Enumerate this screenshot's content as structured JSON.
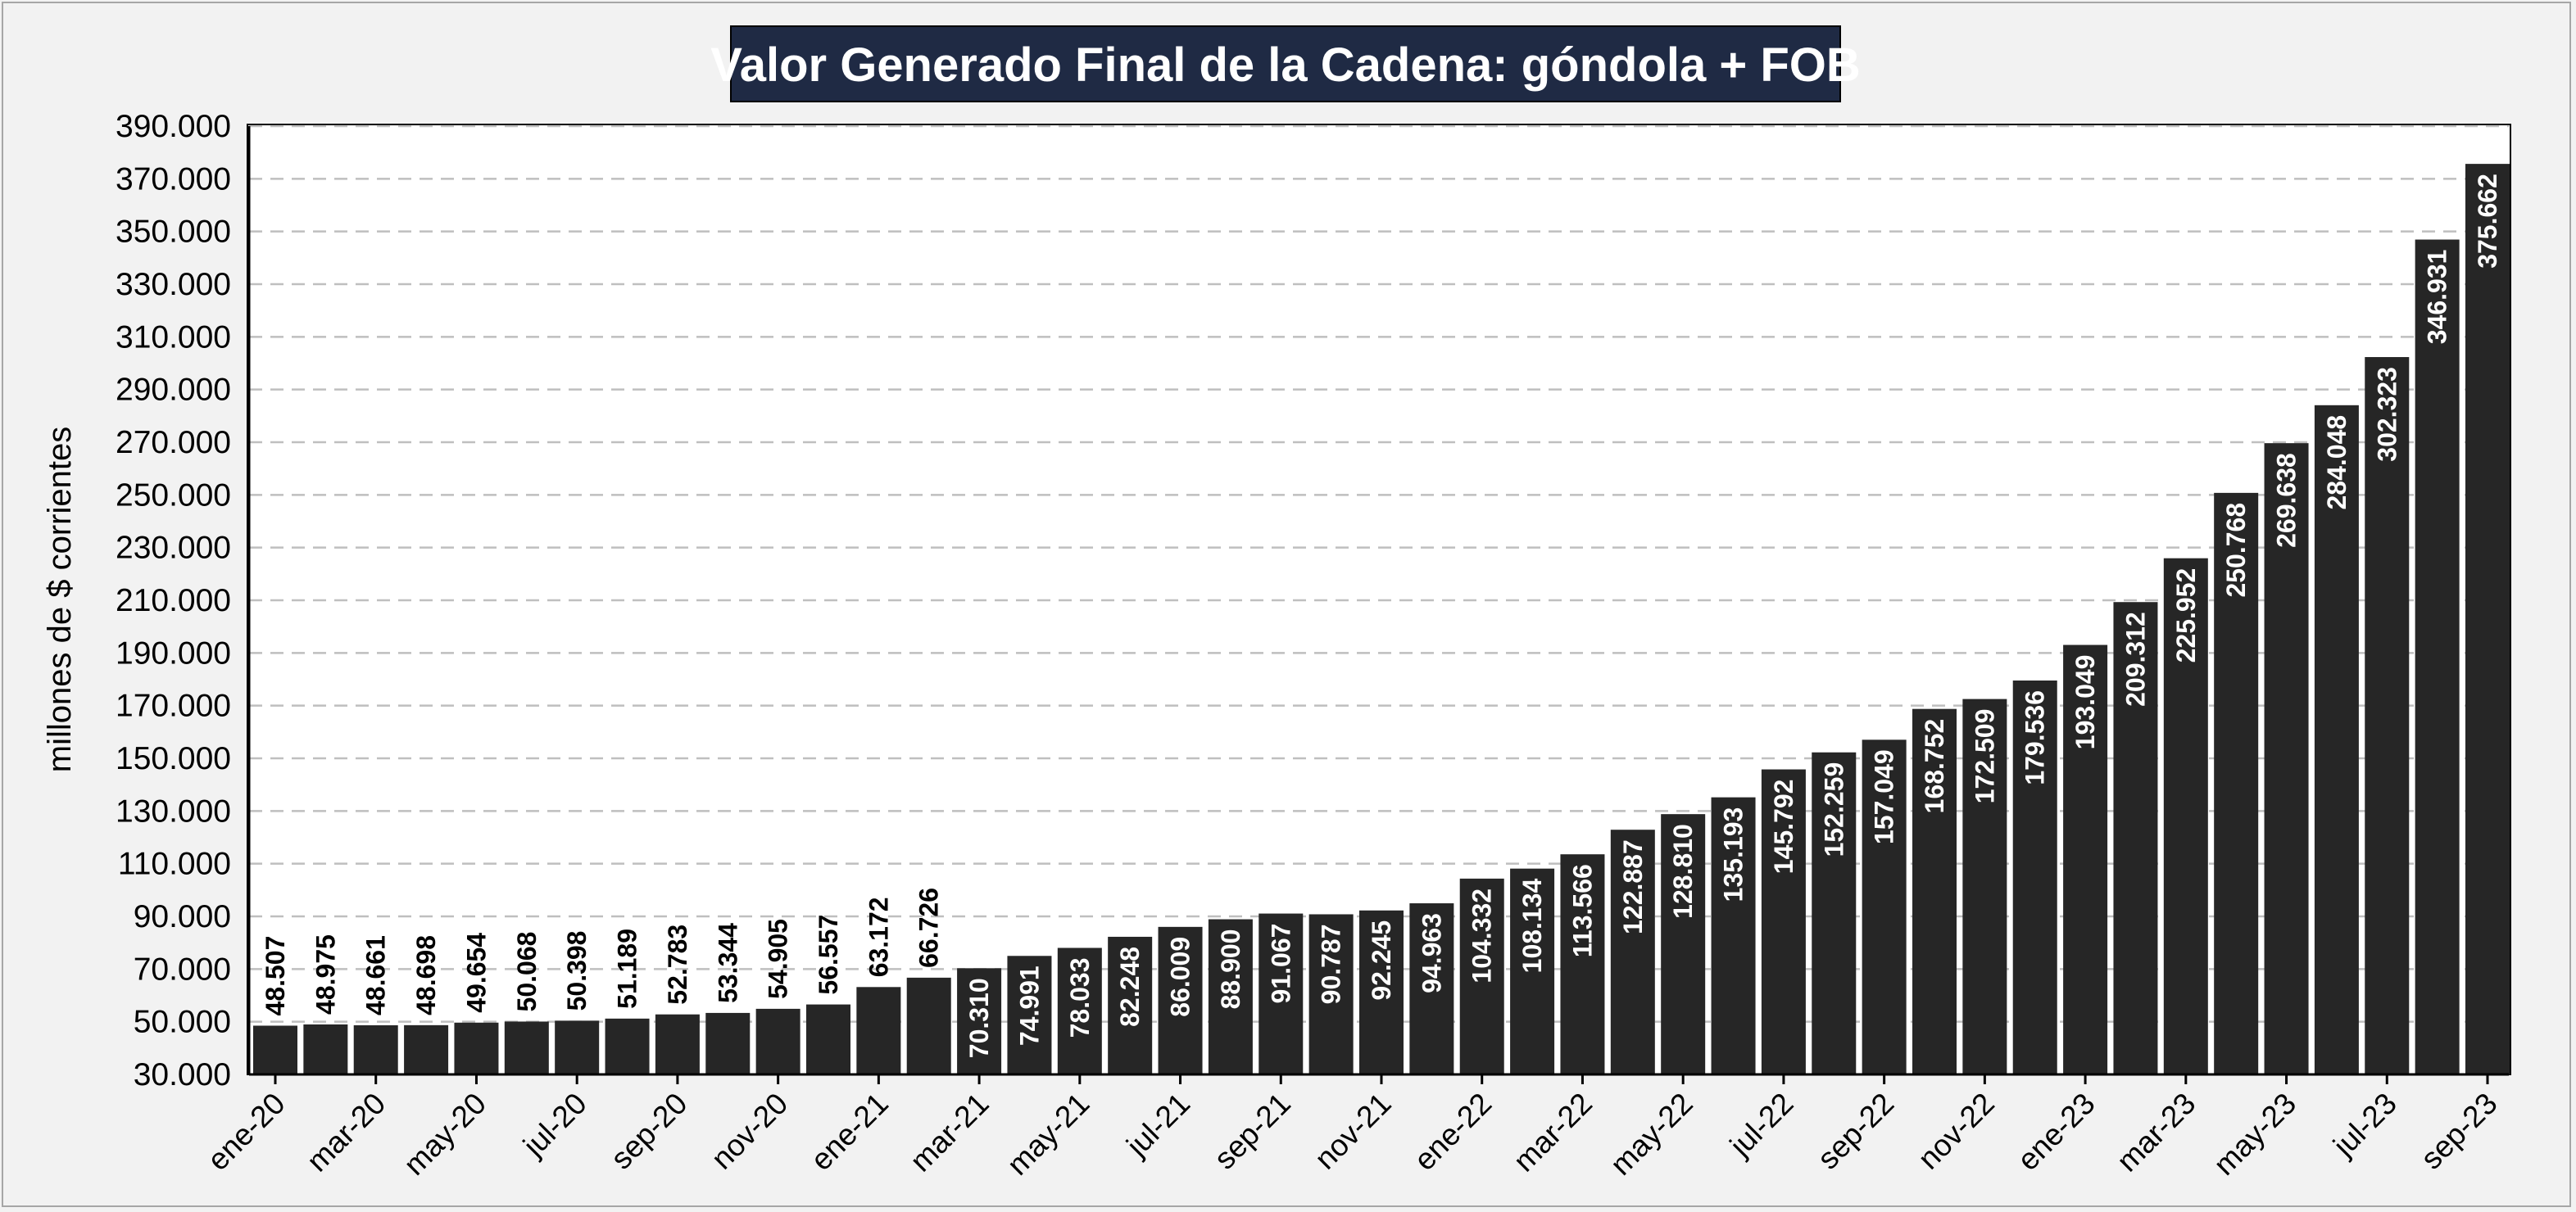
{
  "chart_data": {
    "type": "bar",
    "title": "Valor Generado Final de la Cadena: góndola + FOB",
    "xlabel": "",
    "ylabel": "millones de $ corrientes",
    "ylim": [
      30000,
      390000
    ],
    "yticks": [
      30000,
      50000,
      70000,
      90000,
      110000,
      130000,
      150000,
      170000,
      190000,
      210000,
      230000,
      250000,
      270000,
      290000,
      310000,
      330000,
      350000,
      370000,
      390000
    ],
    "ytick_labels": [
      "30.000",
      "50.000",
      "70.000",
      "90.000",
      "110.000",
      "130.000",
      "150.000",
      "170.000",
      "190.000",
      "210.000",
      "230.000",
      "250.000",
      "270.000",
      "290.000",
      "310.000",
      "330.000",
      "350.000",
      "370.000",
      "390.000"
    ],
    "grid": true,
    "bar_color": "#262626",
    "categories": [
      "ene-20",
      "feb-20",
      "mar-20",
      "abr-20",
      "may-20",
      "jun-20",
      "jul-20",
      "ago-20",
      "sep-20",
      "oct-20",
      "nov-20",
      "dic-20",
      "ene-21",
      "feb-21",
      "mar-21",
      "abr-21",
      "may-21",
      "jun-21",
      "jul-21",
      "ago-21",
      "sep-21",
      "oct-21",
      "nov-21",
      "dic-21",
      "ene-22",
      "feb-22",
      "mar-22",
      "abr-22",
      "may-22",
      "jun-22",
      "jul-22",
      "ago-22",
      "sep-22",
      "oct-22",
      "nov-22",
      "dic-22",
      "ene-23",
      "feb-23",
      "mar-23",
      "abr-23",
      "may-23",
      "jun-23",
      "jul-23",
      "ago-23",
      "sep-23"
    ],
    "xtick_labels": [
      "ene-20",
      "",
      "mar-20",
      "",
      "may-20",
      "",
      "jul-20",
      "",
      "sep-20",
      "",
      "nov-20",
      "",
      "ene-21",
      "",
      "mar-21",
      "",
      "may-21",
      "",
      "jul-21",
      "",
      "sep-21",
      "",
      "nov-21",
      "",
      "ene-22",
      "",
      "mar-22",
      "",
      "may-22",
      "",
      "jul-22",
      "",
      "sep-22",
      "",
      "nov-22",
      "",
      "ene-23",
      "",
      "mar-23",
      "",
      "may-23",
      "",
      "jul-23",
      "",
      "sep-23"
    ],
    "values": [
      48507,
      48975,
      48661,
      48698,
      49654,
      50068,
      50398,
      51189,
      52783,
      53344,
      54905,
      56557,
      63172,
      66726,
      70310,
      74991,
      78033,
      82248,
      86009,
      88900,
      91067,
      90787,
      92245,
      94963,
      104332,
      108134,
      113566,
      122887,
      128810,
      135193,
      145792,
      152259,
      157049,
      168752,
      172509,
      179536,
      193049,
      209312,
      225952,
      250768,
      269638,
      284048,
      302323,
      346931,
      375662
    ],
    "value_labels": [
      "48.507",
      "48.975",
      "48.661",
      "48.698",
      "49.654",
      "50.068",
      "50.398",
      "51.189",
      "52.783",
      "53.344",
      "54.905",
      "56.557",
      "63.172",
      "66.726",
      "70.310",
      "74.991",
      "78.033",
      "82.248",
      "86.009",
      "88.900",
      "91.067",
      "90.787",
      "92.245",
      "94.963",
      "104.332",
      "108.134",
      "113.566",
      "122.887",
      "128.810",
      "135.193",
      "145.792",
      "152.259",
      "157.049",
      "168.752",
      "172.509",
      "179.536",
      "193.049",
      "209.312",
      "225.952",
      "250.768",
      "269.638",
      "284.048",
      "302.323",
      "346.931",
      "375.662"
    ]
  }
}
